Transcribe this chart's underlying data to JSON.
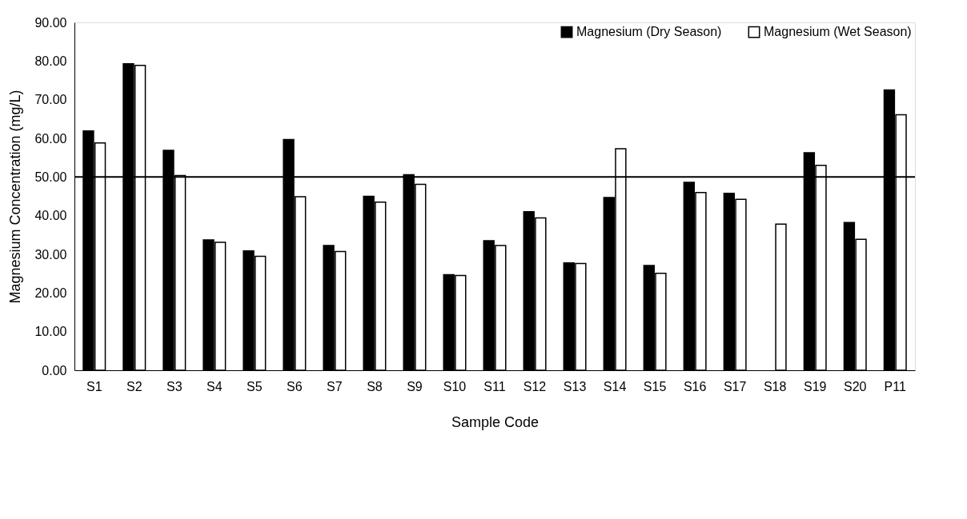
{
  "chart_data": {
    "type": "bar",
    "xlabel": "Sample Code",
    "ylabel": "Magnesium Concentration (mg/L)",
    "categories": [
      "S1",
      "S2",
      "S3",
      "S4",
      "S5",
      "S6",
      "S7",
      "S8",
      "S9",
      "S10",
      "S11",
      "S12",
      "S13",
      "S14",
      "S15",
      "S16",
      "S17",
      "S18",
      "S19",
      "S20",
      "P11"
    ],
    "series": [
      {
        "name": "Magnesium (Dry Season)",
        "color": "#000000",
        "values": [
          61.9,
          79.3,
          56.9,
          33.7,
          30.9,
          59.7,
          32.3,
          45.0,
          50.6,
          24.7,
          33.5,
          41.0,
          27.8,
          44.7,
          27.1,
          48.6,
          45.8,
          null,
          56.3,
          38.2,
          72.5
        ]
      },
      {
        "name": "Magnesium (Wet Season)",
        "color": "#ffffff",
        "values": [
          58.8,
          78.9,
          50.4,
          33.1,
          29.5,
          44.9,
          30.7,
          43.5,
          48.1,
          24.5,
          32.3,
          39.4,
          27.6,
          57.3,
          25.1,
          46.0,
          44.2,
          37.8,
          53.0,
          33.9,
          66.1
        ]
      }
    ],
    "ylim": [
      0,
      90
    ],
    "yticks": [
      {
        "value": 0,
        "label": "0.00"
      },
      {
        "value": 10,
        "label": "10.00"
      },
      {
        "value": 20,
        "label": "20.00"
      },
      {
        "value": 30,
        "label": "30.00"
      },
      {
        "value": 40,
        "label": "40.00"
      },
      {
        "value": 50,
        "label": "50.00"
      },
      {
        "value": 60,
        "label": "60.00"
      },
      {
        "value": 70,
        "label": "70.00"
      },
      {
        "value": 80,
        "label": "80.00"
      },
      {
        "value": 90,
        "label": "90.00"
      }
    ],
    "ref_lines": [
      {
        "axis": "y",
        "value": 50,
        "color": "#000000"
      }
    ],
    "legend": "top right",
    "grid": false
  }
}
